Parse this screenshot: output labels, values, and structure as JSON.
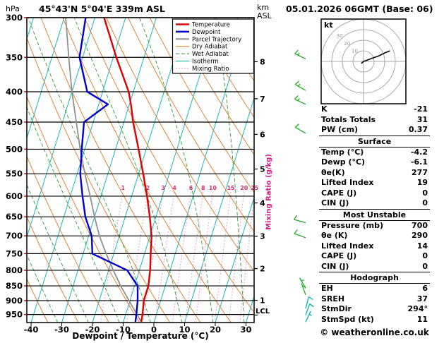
{
  "header": {
    "pressure_unit": "hPa",
    "station": "45°43'N 5°04'E 339m ASL",
    "datetime": "05.01.2026 06GMT (Base: 06)"
  },
  "axes": {
    "km": "km",
    "asl": "ASL",
    "xlabel": "Dewpoint / Temperature (°C)",
    "mixing_label": "Mixing Ratio (g/kg)",
    "lcl": "LCL"
  },
  "footer": {
    "credit": "© weatheronline.co.uk"
  },
  "hodograph": {
    "unit": "kt",
    "rings_kt": [
      10,
      20,
      30
    ],
    "trace": {
      "u": [
        -2,
        0,
        3,
        8,
        14,
        20,
        25
      ],
      "v": [
        -2,
        0,
        1,
        3,
        5,
        8,
        10
      ]
    }
  },
  "stats": {
    "top": [
      {
        "label": "K",
        "value": "-21"
      },
      {
        "label": "Totals Totals",
        "value": "31"
      },
      {
        "label": "PW (cm)",
        "value": "0.37"
      }
    ],
    "sections": [
      {
        "title": "Surface",
        "rows": [
          [
            "Temp (°C)",
            "-4.2"
          ],
          [
            "Dewp (°C)",
            "-6.1"
          ],
          [
            "θe(K)",
            "277"
          ],
          [
            "Lifted Index",
            "19"
          ],
          [
            "CAPE (J)",
            "0"
          ],
          [
            "CIN (J)",
            "0"
          ]
        ]
      },
      {
        "title": "Most Unstable",
        "rows": [
          [
            "Pressure (mb)",
            "700"
          ],
          [
            "θe (K)",
            "290"
          ],
          [
            "Lifted Index",
            "14"
          ],
          [
            "CAPE (J)",
            "0"
          ],
          [
            "CIN (J)",
            "0"
          ]
        ]
      },
      {
        "title": "Hodograph",
        "rows": [
          [
            "EH",
            "6"
          ],
          [
            "SREH",
            "37"
          ],
          [
            "StmDir",
            "294°"
          ],
          [
            "StmSpd (kt)",
            "11"
          ]
        ]
      }
    ]
  },
  "chart_data": {
    "type": "line",
    "title": "Skew-T log-P sounding 45°43'N 5°04'E 339m ASL 05.01.2026 06GMT",
    "xlabel": "Dewpoint / Temperature (°C)",
    "ylabel": "hPa",
    "x_ticks_c": [
      -40,
      -30,
      -20,
      -10,
      0,
      10,
      20,
      30
    ],
    "pressure_ticks_hpa": [
      300,
      350,
      400,
      450,
      500,
      550,
      600,
      650,
      700,
      750,
      800,
      850,
      900,
      950
    ],
    "p_top": 300,
    "p_bottom": 980,
    "km_asl_ticks": [
      {
        "km": 1,
        "p": 899
      },
      {
        "km": 2,
        "p": 795
      },
      {
        "km": 3,
        "p": 701
      },
      {
        "km": 4,
        "p": 616
      },
      {
        "km": 5,
        "p": 540
      },
      {
        "km": 6,
        "p": 472
      },
      {
        "km": 7,
        "p": 411
      },
      {
        "km": 8,
        "p": 356
      }
    ],
    "lcl_p": 952,
    "isotherm_step_c": 10,
    "dry_adiabat_theta_k": {
      "min": 230,
      "max": 400,
      "step": 10
    },
    "wet_adiabat_t0_c": {
      "min": -40,
      "max": 30,
      "step": 10
    },
    "mixing_ratio_gkg": [
      1,
      2,
      3,
      4,
      6,
      8,
      10,
      15,
      20,
      25
    ],
    "mixing_ratio_top_p": 590,
    "colors": {
      "temperature": "#dd0000",
      "dewpoint": "#0000cc",
      "parcel": "#909090",
      "dry_adiabat": "#e07820",
      "wet_adiabat": "#2f9e2f",
      "isotherm": "#00b2b2",
      "mixing_ratio": "#f080c0",
      "mixing_label": "#e03070",
      "pressure_line": "#000000",
      "axis_tick_red": "#cc0000",
      "wind_low": "#00b2b2",
      "wind_high": "#22aa22"
    },
    "series": [
      {
        "name": "Temperature",
        "color_key": "temperature",
        "width": 2.4,
        "p": [
          977,
          950,
          900,
          850,
          800,
          750,
          700,
          650,
          600,
          550,
          500,
          450,
          420,
          400,
          350,
          300
        ],
        "t": [
          -4.2,
          -4.5,
          -5.5,
          -5.5,
          -6.5,
          -8,
          -9.5,
          -12,
          -15,
          -18.5,
          -22.5,
          -27,
          -29.5,
          -31.5,
          -39,
          -47
        ]
      },
      {
        "name": "Dewpoint",
        "color_key": "dewpoint",
        "width": 2.4,
        "p": [
          977,
          950,
          900,
          850,
          800,
          750,
          700,
          650,
          600,
          550,
          500,
          450,
          420,
          400,
          350,
          300
        ],
        "t": [
          -6.1,
          -6.5,
          -7.5,
          -9,
          -14,
          -27,
          -29,
          -33,
          -36,
          -39,
          -41,
          -43,
          -37,
          -45,
          -51,
          -53
        ]
      },
      {
        "name": "Parcel Trajectory",
        "color_key": "parcel",
        "width": 1.8,
        "p": [
          977,
          950,
          900,
          850,
          800,
          750,
          700,
          650,
          600,
          550,
          500,
          450,
          400,
          350,
          300
        ],
        "t": [
          -4.2,
          -6.3,
          -10.3,
          -14.5,
          -18.5,
          -22.5,
          -26.5,
          -30,
          -33.5,
          -37.5,
          -41.5,
          -45.5,
          -50,
          -54.5,
          -59.5
        ]
      }
    ],
    "legend": [
      {
        "label": "Temperature",
        "color_key": "temperature",
        "style": "solid",
        "width": 2.5
      },
      {
        "label": "Dewpoint",
        "color_key": "dewpoint",
        "style": "solid",
        "width": 2.5
      },
      {
        "label": "Parcel Trajectory",
        "color_key": "parcel",
        "style": "solid",
        "width": 2
      },
      {
        "label": "Dry Adiabat",
        "color_key": "dry_adiabat",
        "style": "solid",
        "width": 1
      },
      {
        "label": "Wet Adiabat",
        "color_key": "wet_adiabat",
        "style": "dashed",
        "width": 1
      },
      {
        "label": "Isotherm",
        "color_key": "isotherm",
        "style": "solid",
        "width": 1
      },
      {
        "label": "Mixing Ratio",
        "color_key": "mixing_ratio",
        "style": "dotted",
        "width": 1
      }
    ],
    "wind_barbs": [
      {
        "p": 978,
        "spd": 5,
        "dir": 25
      },
      {
        "p": 952,
        "spd": 10,
        "dir": 20
      },
      {
        "p": 928,
        "spd": 10,
        "dir": 15
      },
      {
        "p": 880,
        "spd": 5,
        "dir": 340
      },
      {
        "p": 858,
        "spd": 5,
        "dir": 330
      },
      {
        "p": 705,
        "spd": 10,
        "dir": 290
      },
      {
        "p": 665,
        "spd": 10,
        "dir": 285
      },
      {
        "p": 470,
        "spd": 10,
        "dir": 300
      },
      {
        "p": 420,
        "spd": 15,
        "dir": 295
      },
      {
        "p": 398,
        "spd": 15,
        "dir": 300
      },
      {
        "p": 352,
        "spd": 15,
        "dir": 295
      }
    ]
  }
}
